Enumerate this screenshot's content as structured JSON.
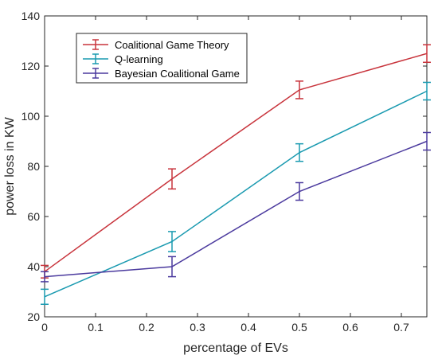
{
  "chart_data": {
    "type": "line",
    "title": "",
    "xlabel": "percentage of EVs",
    "ylabel": "power loss in KW",
    "xlim": [
      0,
      0.75
    ],
    "ylim": [
      20,
      140
    ],
    "xticks": [
      0,
      0.1,
      0.2,
      0.3,
      0.4,
      0.5,
      0.6,
      0.7
    ],
    "xtick_labels": [
      "0",
      "0.1",
      "0.2",
      "0.3",
      "0.4",
      "0.5",
      "0.6",
      "0.7"
    ],
    "yticks": [
      20,
      40,
      60,
      80,
      100,
      120,
      140
    ],
    "ytick_labels": [
      "20",
      "40",
      "60",
      "80",
      "100",
      "120",
      "140"
    ],
    "grid": false,
    "legend_position": "top-left",
    "x": [
      0,
      0.25,
      0.5,
      0.75
    ],
    "series": [
      {
        "name": "Coalitional Game Theory",
        "color": "#c8343c",
        "values": [
          38,
          75,
          110.5,
          125
        ],
        "errors": [
          2.5,
          4,
          3.5,
          3.5
        ]
      },
      {
        "name": "Q-learning",
        "color": "#1a9ab0",
        "values": [
          28,
          50,
          85.5,
          110
        ],
        "errors": [
          3,
          4,
          3.5,
          3.5
        ]
      },
      {
        "name": "Bayesian Coalitional Game",
        "color": "#4b3a9e",
        "values": [
          36,
          40,
          70,
          90
        ],
        "errors": [
          2,
          4,
          3.5,
          3.5
        ]
      }
    ]
  }
}
